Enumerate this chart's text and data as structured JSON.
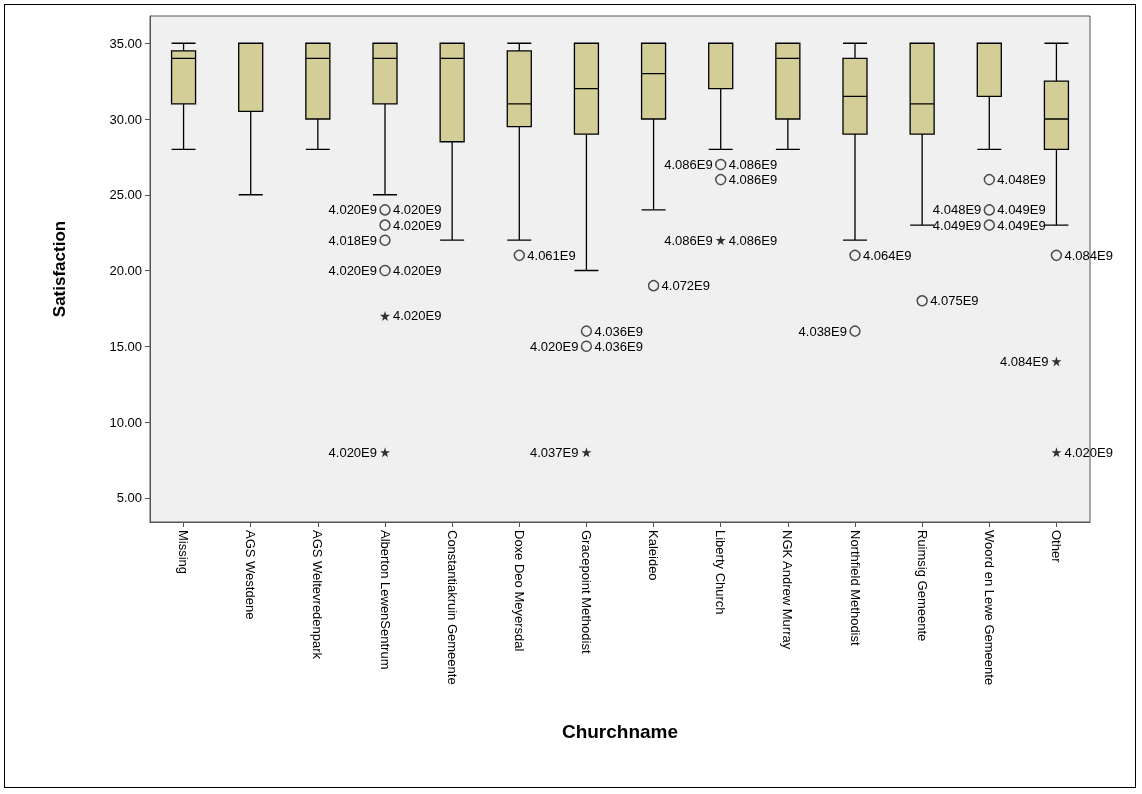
{
  "chart_data": {
    "type": "box",
    "xlabel": "Churchname",
    "ylabel": "Satisfaction",
    "grid": false,
    "categories": [
      "Missing",
      "AGS Westdene",
      "AGS Weltevredenpark",
      "Alberton LewenSentrum",
      "Constantiakruin Gemeente",
      "Doxe Deo Meyersdal",
      "Gracepoint Methodist",
      "Kaleideo",
      "Liberty Church",
      "NGK Andrew Murray",
      "Northfield Methodist",
      "Ruimsig Gemeente",
      "Woord en Lewe Gemeente",
      "Other"
    ],
    "ylim": [
      3.4,
      36.8
    ],
    "yticks": [
      {
        "value": 5,
        "label": "5.00"
      },
      {
        "value": 10,
        "label": "10.00"
      },
      {
        "value": 15,
        "label": "15.00"
      },
      {
        "value": 20,
        "label": "20.00"
      },
      {
        "value": 25,
        "label": "25.00"
      },
      {
        "value": 30,
        "label": "30.00"
      },
      {
        "value": 35,
        "label": "35.00"
      }
    ],
    "series": [
      {
        "color": "#d3ce97",
        "boxes": [
          {
            "low": 28,
            "q1": 31,
            "median": 34,
            "q3": 34.5,
            "high": 35
          },
          {
            "low": 25,
            "q1": 30.5,
            "median": 35,
            "q3": 35,
            "high": 35
          },
          {
            "low": 28,
            "q1": 30,
            "median": 34,
            "q3": 35,
            "high": 35
          },
          {
            "low": 25,
            "q1": 31,
            "median": 34,
            "q3": 35,
            "high": 35
          },
          {
            "low": 22,
            "q1": 28.5,
            "median": 34,
            "q3": 35,
            "high": 35
          },
          {
            "low": 22,
            "q1": 29.5,
            "median": 31,
            "q3": 34.5,
            "high": 35
          },
          {
            "low": 20,
            "q1": 29,
            "median": 32,
            "q3": 35,
            "high": 35
          },
          {
            "low": 24,
            "q1": 30,
            "median": 33,
            "q3": 35,
            "high": 35
          },
          {
            "low": 28,
            "q1": 32,
            "median": 35,
            "q3": 35,
            "high": 35
          },
          {
            "low": 28,
            "q1": 30,
            "median": 34,
            "q3": 35,
            "high": 35
          },
          {
            "low": 22,
            "q1": 29,
            "median": 31.5,
            "q3": 34,
            "high": 35
          },
          {
            "low": 23,
            "q1": 29,
            "median": 31,
            "q3": 35,
            "high": 35
          },
          {
            "low": 28,
            "q1": 31.5,
            "median": 35,
            "q3": 35,
            "high": 35
          },
          {
            "low": 23,
            "q1": 28,
            "median": 30,
            "q3": 32.5,
            "high": 35
          }
        ]
      },
      {
        "type": "scatter",
        "marker": "circle",
        "color": "#222222",
        "x": [
          "Alberton LewenSentrum",
          "Alberton LewenSentrum",
          "Alberton LewenSentrum",
          "Alberton LewenSentrum",
          "Doxe Deo Meyersdal",
          "Gracepoint Methodist",
          "Gracepoint Methodist",
          "Kaleideo",
          "Liberty Church",
          "Liberty Church",
          "Northfield Methodist",
          "Northfield Methodist",
          "Ruimsig Gemeente",
          "Woord en Lewe Gemeente",
          "Woord en Lewe Gemeente",
          "Woord en Lewe Gemeente",
          "Other"
        ],
        "values": [
          24,
          23,
          22,
          20,
          21,
          16,
          15,
          19,
          27,
          26,
          21,
          16,
          18,
          26,
          24,
          23,
          21
        ]
      },
      {
        "type": "scatter",
        "marker": "star",
        "color": "#000000",
        "x": [
          "Alberton LewenSentrum",
          "Alberton LewenSentrum",
          "Gracepoint Methodist",
          "Liberty Church",
          "Other",
          "Other"
        ],
        "values": [
          17,
          8,
          8,
          22,
          14,
          8
        ]
      }
    ],
    "annotations": [
      {
        "text": "4.020E9",
        "x": "Alberton LewenSentrum",
        "y": 24
      },
      {
        "text": "4.020E9",
        "x": "Alberton LewenSentrum",
        "y": 24
      },
      {
        "text": "4.020E9",
        "x": "Alberton LewenSentrum",
        "y": 23
      },
      {
        "text": "4.018E9",
        "x": "Alberton LewenSentrum",
        "y": 22
      },
      {
        "text": "4.020E9",
        "x": "Alberton LewenSentrum",
        "y": 20
      },
      {
        "text": "4.020E9",
        "x": "Alberton LewenSentrum",
        "y": 20
      },
      {
        "text": "4.020E9",
        "x": "Alberton LewenSentrum",
        "y": 17
      },
      {
        "text": "4.020E9",
        "x": "Alberton LewenSentrum",
        "y": 8
      },
      {
        "text": "4.061E9",
        "x": "Doxe Deo Meyersdal",
        "y": 21
      },
      {
        "text": "4.036E9",
        "x": "Gracepoint Methodist",
        "y": 16
      },
      {
        "text": "4.020E9",
        "x": "Gracepoint Methodist",
        "y": 15
      },
      {
        "text": "4.036E9",
        "x": "Gracepoint Methodist",
        "y": 15
      },
      {
        "text": "4.037E9",
        "x": "Gracepoint Methodist",
        "y": 8
      },
      {
        "text": "4.072E9",
        "x": "Kaleideo",
        "y": 19
      },
      {
        "text": "4.086E9",
        "x": "Liberty Church",
        "y": 27
      },
      {
        "text": "4.086E9",
        "x": "Liberty Church",
        "y": 27
      },
      {
        "text": "4.086E9",
        "x": "Liberty Church",
        "y": 26
      },
      {
        "text": "4.086E9",
        "x": "Liberty Church",
        "y": 22
      },
      {
        "text": "4.086E9",
        "x": "Liberty Church",
        "y": 22
      },
      {
        "text": "4.064E9",
        "x": "Northfield Methodist",
        "y": 21
      },
      {
        "text": "4.038E9",
        "x": "Northfield Methodist",
        "y": 16
      },
      {
        "text": "4.075E9",
        "x": "Ruimsig Gemeente",
        "y": 18
      },
      {
        "text": "4.048E9",
        "x": "Woord en Lewe Gemeente",
        "y": 26
      },
      {
        "text": "4.048E9",
        "x": "Woord en Lewe Gemeente",
        "y": 24
      },
      {
        "text": "4.049E9",
        "x": "Woord en Lewe Gemeente",
        "y": 24
      },
      {
        "text": "4.049E9",
        "x": "Woord en Lewe Gemeente",
        "y": 23
      },
      {
        "text": "4.049E9",
        "x": "Woord en Lewe Gemeente",
        "y": 23
      },
      {
        "text": "4.084E9",
        "x": "Other",
        "y": 21
      },
      {
        "text": "4.084E9",
        "x": "Other",
        "y": 14
      },
      {
        "text": "4.020E9",
        "x": "Other",
        "y": 8
      }
    ]
  }
}
